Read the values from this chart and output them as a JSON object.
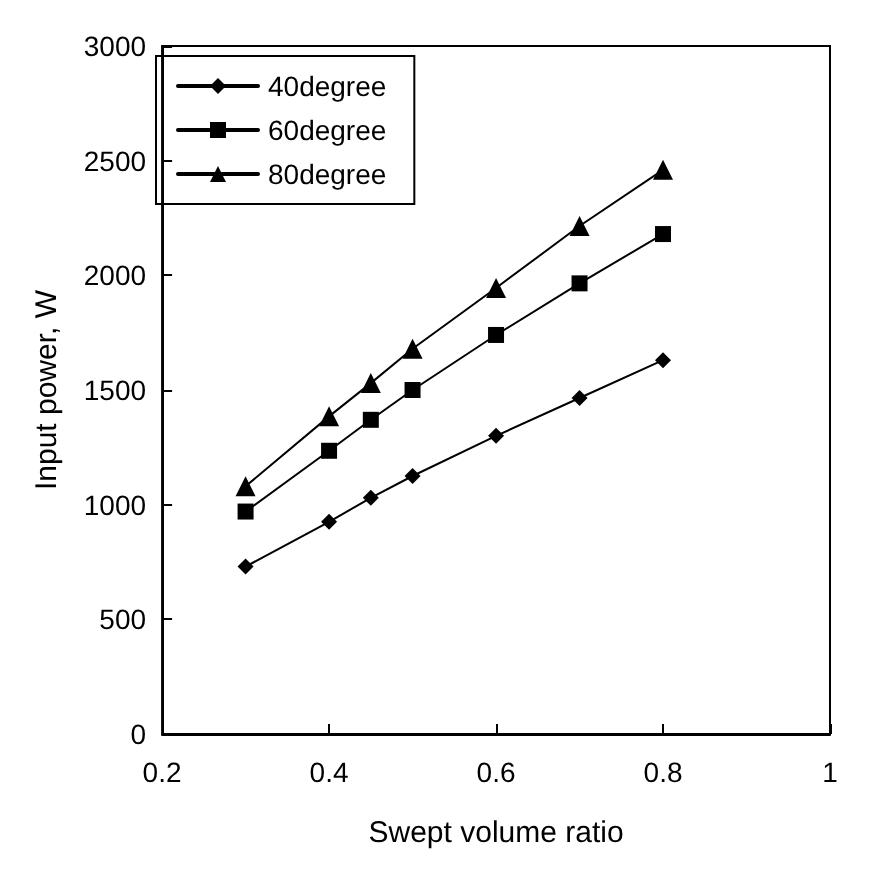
{
  "chart_data": {
    "type": "line",
    "xlabel": "Swept volume ratio",
    "ylabel": "Input power, W",
    "x": [
      0.3,
      0.4,
      0.45,
      0.5,
      0.6,
      0.7,
      0.8
    ],
    "series": [
      {
        "name": "40degree",
        "color": "#000000",
        "marker": "diamond",
        "values": [
          730,
          925,
          1030,
          1125,
          1300,
          1465,
          1630
        ]
      },
      {
        "name": "60degree",
        "color": "#000000",
        "marker": "square",
        "values": [
          970,
          1235,
          1370,
          1500,
          1740,
          1965,
          2180
        ]
      },
      {
        "name": "80degree",
        "color": "#000000",
        "marker": "triangle",
        "values": [
          1080,
          1385,
          1530,
          1680,
          1945,
          2215,
          2460
        ]
      }
    ],
    "xlim": [
      0.2,
      1
    ],
    "xticks": [
      0.2,
      0.4,
      0.6,
      0.8,
      1
    ],
    "ylim": [
      0,
      3000
    ],
    "yticks": [
      0,
      500,
      1000,
      1500,
      2000,
      2500,
      3000
    ],
    "grid": false,
    "legend": "top left",
    "line_style": "solid"
  }
}
